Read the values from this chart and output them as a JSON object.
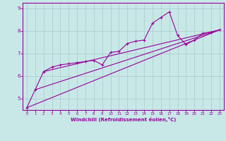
{
  "xlabel": "Windchill (Refroidissement éolien,°C)",
  "bg_color": "#c8e8e8",
  "line_color": "#990099",
  "xlim": [
    -0.5,
    23.5
  ],
  "ylim": [
    4.5,
    9.25
  ],
  "xticks": [
    0,
    1,
    2,
    3,
    4,
    5,
    6,
    7,
    8,
    9,
    10,
    11,
    12,
    13,
    14,
    15,
    16,
    17,
    18,
    19,
    20,
    21,
    22,
    23
  ],
  "yticks": [
    5,
    6,
    7,
    8,
    9
  ],
  "grid_color": "#b0cece",
  "series1_x": [
    0,
    1,
    2,
    3,
    4,
    5,
    6,
    7,
    8,
    9,
    10,
    11,
    12,
    13,
    14,
    15,
    16,
    17,
    18,
    19,
    20,
    21,
    22,
    23
  ],
  "series1_y": [
    4.6,
    5.4,
    6.2,
    6.4,
    6.5,
    6.55,
    6.6,
    6.65,
    6.7,
    6.5,
    7.05,
    7.1,
    7.45,
    7.55,
    7.6,
    8.35,
    8.6,
    8.85,
    7.8,
    7.4,
    7.6,
    7.9,
    7.95,
    8.05
  ],
  "line1_x": [
    0,
    23
  ],
  "line1_y": [
    4.6,
    8.05
  ],
  "line2_x": [
    1,
    23
  ],
  "line2_y": [
    5.4,
    8.05
  ],
  "line3_x": [
    2,
    23
  ],
  "line3_y": [
    6.2,
    8.05
  ]
}
